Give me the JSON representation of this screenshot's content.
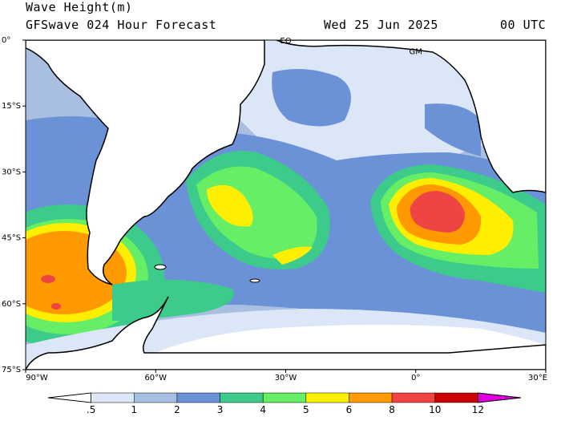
{
  "header": {
    "variable": "Wave Height(m)",
    "model": "GFSwave 024 Hour Forecast",
    "date": "Wed 25 Jun 2025",
    "time": "00 UTC"
  },
  "map": {
    "lon_range": [
      -90,
      30
    ],
    "lat_range": [
      -75,
      0
    ],
    "lon_ticks": [
      {
        "value": -90,
        "label": "90°W"
      },
      {
        "value": -60,
        "label": "60°W"
      },
      {
        "value": -30,
        "label": "30°W"
      },
      {
        "value": 0,
        "label": "0°"
      },
      {
        "value": 30,
        "label": "30°E"
      }
    ],
    "lat_ticks": [
      {
        "value": 0,
        "label": "0°"
      },
      {
        "value": -15,
        "label": "15°S"
      },
      {
        "value": -30,
        "label": "30°S"
      },
      {
        "value": -45,
        "label": "45°S"
      },
      {
        "value": -60,
        "label": "60°S"
      },
      {
        "value": -75,
        "label": "75°S"
      }
    ],
    "annotations": [
      {
        "text": "EQ",
        "lon": -30,
        "lat": 0
      },
      {
        "text": "GM",
        "lon": 0,
        "lat": -2.5
      }
    ],
    "colors": {
      "land": "#ffffff",
      "coast": "#000000",
      "background_sea": "#a9bfe2"
    }
  },
  "colorbar": {
    "labels": [
      ".5",
      "1",
      "2",
      "3",
      "4",
      "5",
      "6",
      "8",
      "10",
      "12"
    ],
    "colors": [
      "#ffffff",
      "#dbe6f7",
      "#a9bfe2",
      "#6b91d6",
      "#3ccb8b",
      "#66ee66",
      "#ffee00",
      "#ff9900",
      "#ee4444",
      "#cc0000",
      "#dd00dd"
    ]
  }
}
